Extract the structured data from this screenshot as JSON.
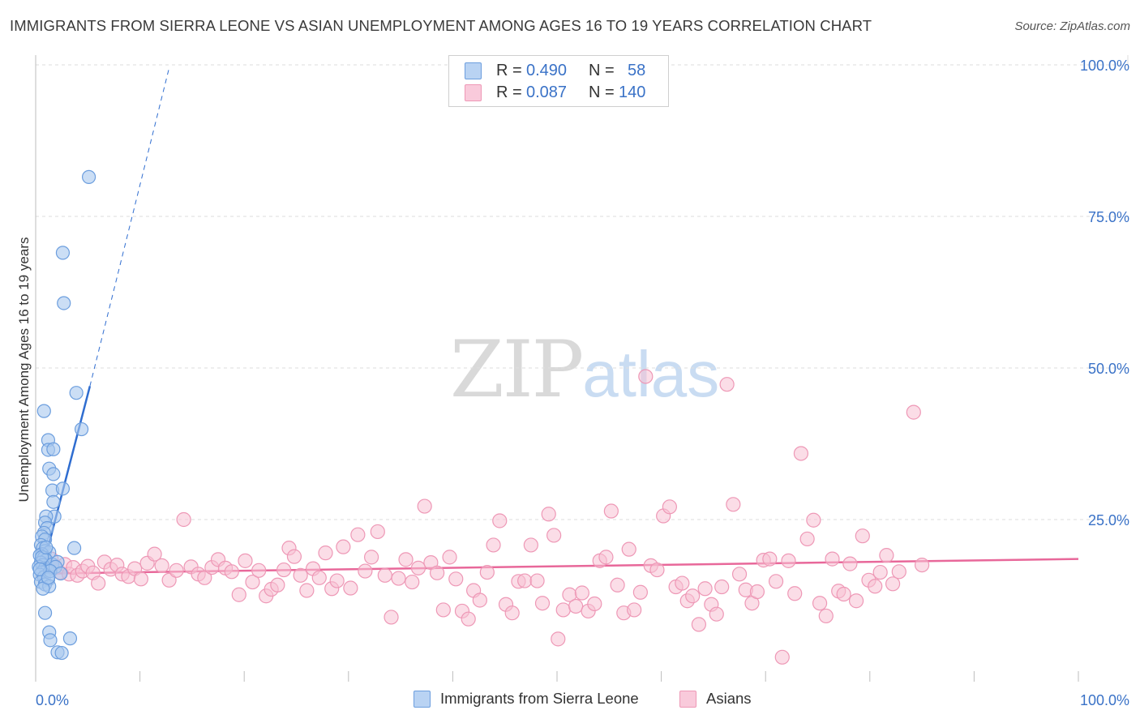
{
  "header": {
    "title": "IMMIGRANTS FROM SIERRA LEONE VS ASIAN UNEMPLOYMENT AMONG AGES 16 TO 19 YEARS CORRELATION CHART",
    "source": "Source: ZipAtlas.com"
  },
  "watermark": {
    "zip": "ZIP",
    "atlas": "atlas"
  },
  "legend": {
    "rows": [
      {
        "r_label": "R =",
        "r_value": "0.490",
        "n_label": "N =",
        "n_value": "58",
        "color": "#6fa1e0"
      },
      {
        "r_label": "R =",
        "r_value": "0.087",
        "n_label": "N =",
        "n_value": "140",
        "color": "#f19ab8"
      }
    ]
  },
  "bottom_legend": {
    "series1": "Immigrants from Sierra Leone",
    "series2": "Asians"
  },
  "chart_data": {
    "type": "scatter",
    "title": "IMMIGRANTS FROM SIERRA LEONE VS ASIAN UNEMPLOYMENT AMONG AGES 16 TO 19 YEARS CORRELATION CHART",
    "xlabel": "",
    "ylabel": "Unemployment Among Ages 16 to 19 years",
    "xlim": [
      0,
      100
    ],
    "ylim": [
      0,
      100
    ],
    "x_tick_labels": [
      "0.0%",
      "100.0%"
    ],
    "y_tick_labels": [
      "25.0%",
      "50.0%",
      "75.0%",
      "100.0%"
    ],
    "y_ticks": [
      25,
      50,
      75,
      100
    ],
    "colors": {
      "blue_fill": "#a9c8ef",
      "blue_stroke": "#6c9ede",
      "blue_line": "#2f6dd0",
      "pink_fill": "#f7c1d3",
      "pink_stroke": "#ee98b6",
      "pink_line": "#e8689a",
      "axis_label": "#3a72c7"
    },
    "series": [
      {
        "name": "Immigrants from Sierra Leone",
        "r": 0.49,
        "n": 58,
        "trend": {
          "x0": 0.3,
          "y0": 14.5,
          "x1": 5.2,
          "y1": 47.0,
          "dash_to_x": 12.8,
          "dash_to_y": 99.5
        },
        "points": [
          [
            5.1,
            81.5
          ],
          [
            2.6,
            69.0
          ],
          [
            2.7,
            60.7
          ],
          [
            3.9,
            45.9
          ],
          [
            4.4,
            39.9
          ],
          [
            0.8,
            42.9
          ],
          [
            1.2,
            38.1
          ],
          [
            1.2,
            36.5
          ],
          [
            1.7,
            36.6
          ],
          [
            1.3,
            33.4
          ],
          [
            1.7,
            32.5
          ],
          [
            1.6,
            29.8
          ],
          [
            2.6,
            30.1
          ],
          [
            1.7,
            27.9
          ],
          [
            1.8,
            25.5
          ],
          [
            1.0,
            25.5
          ],
          [
            0.9,
            24.5
          ],
          [
            1.1,
            23.6
          ],
          [
            0.8,
            22.8
          ],
          [
            0.6,
            22.2
          ],
          [
            0.9,
            21.7
          ],
          [
            0.5,
            20.8
          ],
          [
            0.7,
            20.3
          ],
          [
            0.9,
            19.8
          ],
          [
            1.3,
            19.6
          ],
          [
            0.6,
            19.3
          ],
          [
            0.4,
            19.1
          ],
          [
            0.8,
            18.7
          ],
          [
            1.0,
            18.3
          ],
          [
            0.5,
            17.9
          ],
          [
            0.7,
            17.5
          ],
          [
            0.3,
            17.2
          ],
          [
            0.9,
            17.0
          ],
          [
            1.1,
            16.6
          ],
          [
            0.6,
            16.3
          ],
          [
            0.4,
            15.9
          ],
          [
            0.8,
            15.5
          ],
          [
            1.2,
            15.1
          ],
          [
            0.5,
            14.7
          ],
          [
            0.9,
            14.3
          ],
          [
            1.3,
            14.0
          ],
          [
            0.7,
            13.6
          ],
          [
            3.7,
            20.3
          ],
          [
            1.6,
            17.6
          ],
          [
            2.1,
            18.0
          ],
          [
            1.9,
            17.2
          ],
          [
            1.4,
            16.5
          ],
          [
            2.4,
            16.1
          ],
          [
            0.9,
            9.6
          ],
          [
            1.3,
            6.4
          ],
          [
            1.4,
            5.1
          ],
          [
            3.3,
            5.4
          ],
          [
            2.1,
            3.1
          ],
          [
            2.5,
            3.0
          ],
          [
            0.6,
            18.8
          ],
          [
            1.0,
            20.4
          ],
          [
            0.4,
            16.8
          ],
          [
            1.2,
            15.4
          ]
        ]
      },
      {
        "name": "Asians",
        "r": 0.087,
        "n": 140,
        "trend": {
          "x0": 1.0,
          "y0": 16.1,
          "x1": 100.0,
          "y1": 18.5
        },
        "points": [
          [
            1.5,
            18.5
          ],
          [
            1.8,
            17.0
          ],
          [
            2.3,
            16.3
          ],
          [
            2.8,
            17.6
          ],
          [
            3.2,
            16.0
          ],
          [
            3.6,
            17.1
          ],
          [
            4.0,
            15.8
          ],
          [
            4.5,
            16.5
          ],
          [
            5.0,
            17.3
          ],
          [
            5.5,
            16.2
          ],
          [
            6.0,
            14.5
          ],
          [
            6.6,
            18.0
          ],
          [
            7.2,
            16.8
          ],
          [
            7.8,
            17.5
          ],
          [
            8.3,
            16.0
          ],
          [
            8.9,
            15.6
          ],
          [
            9.5,
            16.9
          ],
          [
            10.1,
            15.2
          ],
          [
            10.7,
            17.8
          ],
          [
            11.4,
            19.3
          ],
          [
            12.1,
            17.4
          ],
          [
            12.8,
            15.0
          ],
          [
            13.5,
            16.6
          ],
          [
            14.2,
            25.0
          ],
          [
            14.9,
            17.2
          ],
          [
            15.6,
            16.0
          ],
          [
            16.2,
            15.4
          ],
          [
            16.9,
            17.1
          ],
          [
            17.5,
            18.4
          ],
          [
            18.2,
            17.0
          ],
          [
            18.8,
            16.4
          ],
          [
            19.5,
            12.6
          ],
          [
            20.1,
            18.2
          ],
          [
            20.8,
            14.7
          ],
          [
            21.4,
            16.6
          ],
          [
            22.1,
            12.4
          ],
          [
            22.6,
            13.5
          ],
          [
            23.2,
            14.2
          ],
          [
            23.8,
            16.7
          ],
          [
            24.3,
            20.3
          ],
          [
            24.8,
            18.9
          ],
          [
            25.4,
            15.8
          ],
          [
            26.0,
            13.3
          ],
          [
            26.6,
            16.9
          ],
          [
            27.2,
            15.4
          ],
          [
            27.8,
            19.5
          ],
          [
            28.4,
            13.6
          ],
          [
            28.9,
            14.9
          ],
          [
            29.5,
            20.5
          ],
          [
            30.2,
            13.7
          ],
          [
            30.9,
            22.5
          ],
          [
            31.6,
            16.5
          ],
          [
            32.2,
            18.8
          ],
          [
            32.8,
            23.0
          ],
          [
            33.5,
            15.8
          ],
          [
            34.1,
            8.9
          ],
          [
            34.8,
            15.3
          ],
          [
            35.5,
            18.4
          ],
          [
            36.1,
            14.7
          ],
          [
            36.7,
            17.0
          ],
          [
            37.3,
            27.2
          ],
          [
            37.9,
            17.9
          ],
          [
            38.5,
            16.2
          ],
          [
            39.1,
            10.1
          ],
          [
            39.7,
            18.8
          ],
          [
            40.3,
            15.2
          ],
          [
            40.9,
            9.9
          ],
          [
            41.5,
            8.6
          ],
          [
            42.0,
            13.3
          ],
          [
            42.6,
            11.7
          ],
          [
            43.3,
            16.3
          ],
          [
            43.9,
            20.8
          ],
          [
            44.5,
            24.8
          ],
          [
            45.1,
            11.0
          ],
          [
            45.7,
            9.6
          ],
          [
            46.3,
            14.8
          ],
          [
            46.9,
            14.9
          ],
          [
            47.5,
            20.8
          ],
          [
            48.1,
            14.9
          ],
          [
            48.6,
            11.2
          ],
          [
            49.2,
            25.9
          ],
          [
            49.7,
            22.4
          ],
          [
            50.1,
            5.3
          ],
          [
            50.6,
            10.1
          ],
          [
            51.2,
            12.6
          ],
          [
            51.8,
            10.7
          ],
          [
            52.4,
            12.9
          ],
          [
            53.0,
            9.9
          ],
          [
            53.6,
            11.1
          ],
          [
            54.1,
            18.2
          ],
          [
            54.7,
            18.8
          ],
          [
            55.2,
            26.4
          ],
          [
            55.8,
            14.2
          ],
          [
            56.4,
            9.6
          ],
          [
            56.9,
            20.1
          ],
          [
            57.4,
            10.1
          ],
          [
            58.0,
            13.0
          ],
          [
            58.5,
            48.6
          ],
          [
            59.0,
            17.4
          ],
          [
            59.6,
            16.7
          ],
          [
            60.2,
            25.6
          ],
          [
            60.8,
            27.1
          ],
          [
            61.4,
            13.9
          ],
          [
            62.0,
            14.5
          ],
          [
            62.5,
            11.6
          ],
          [
            63.0,
            12.4
          ],
          [
            63.6,
            7.7
          ],
          [
            64.2,
            13.6
          ],
          [
            64.8,
            11.0
          ],
          [
            65.3,
            9.4
          ],
          [
            65.8,
            13.9
          ],
          [
            66.3,
            47.3
          ],
          [
            66.9,
            27.5
          ],
          [
            67.5,
            16.0
          ],
          [
            68.1,
            13.4
          ],
          [
            68.7,
            11.2
          ],
          [
            69.2,
            13.1
          ],
          [
            69.8,
            18.3
          ],
          [
            70.4,
            18.5
          ],
          [
            71.0,
            14.8
          ],
          [
            71.6,
            2.3
          ],
          [
            72.2,
            18.2
          ],
          [
            72.8,
            12.8
          ],
          [
            73.4,
            35.9
          ],
          [
            74.0,
            21.8
          ],
          [
            74.6,
            24.9
          ],
          [
            75.2,
            11.2
          ],
          [
            75.8,
            9.1
          ],
          [
            76.4,
            18.5
          ],
          [
            77.0,
            13.2
          ],
          [
            77.5,
            12.7
          ],
          [
            78.1,
            17.7
          ],
          [
            78.7,
            11.6
          ],
          [
            79.3,
            22.3
          ],
          [
            79.9,
            15.0
          ],
          [
            80.5,
            14.0
          ],
          [
            81.0,
            16.3
          ],
          [
            81.6,
            19.1
          ],
          [
            82.2,
            14.4
          ],
          [
            82.8,
            16.4
          ],
          [
            84.2,
            42.7
          ],
          [
            85.0,
            17.5
          ]
        ]
      }
    ]
  }
}
